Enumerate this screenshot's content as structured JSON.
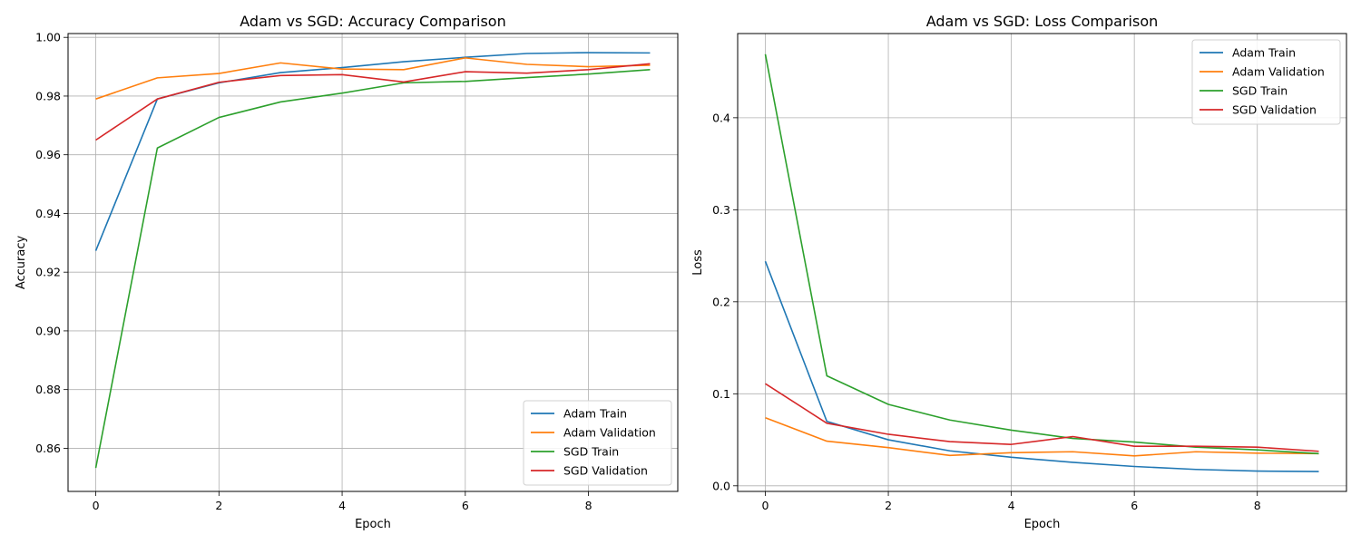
{
  "chart_data": [
    {
      "type": "line",
      "title": "Adam vs SGD: Accuracy Comparison",
      "xlabel": "Epoch",
      "ylabel": "Accuracy",
      "xlim": [
        -0.45,
        9.45
      ],
      "ylim": [
        0.8453,
        1.0013
      ],
      "xticks": [
        0,
        2,
        4,
        6,
        8
      ],
      "xtick_labels": [
        "0",
        "2",
        "4",
        "6",
        "8"
      ],
      "yticks": [
        0.86,
        0.88,
        0.9,
        0.92,
        0.94,
        0.96,
        0.98,
        1.0
      ],
      "ytick_labels": [
        "0.86",
        "0.88",
        "0.90",
        "0.92",
        "0.94",
        "0.96",
        "0.98",
        "1.00"
      ],
      "grid": true,
      "legend_position": "lower-right",
      "x": [
        0,
        1,
        2,
        3,
        4,
        5,
        6,
        7,
        8,
        9
      ],
      "series": [
        {
          "name": "Adam Train",
          "color": "#1f77b4",
          "values": [
            0.9273,
            0.979,
            0.9845,
            0.988,
            0.9897,
            0.9917,
            0.9932,
            0.9945,
            0.9948,
            0.9947
          ]
        },
        {
          "name": "Adam Validation",
          "color": "#ff7f0e",
          "values": [
            0.979,
            0.9862,
            0.9877,
            0.9913,
            0.9892,
            0.989,
            0.993,
            0.9908,
            0.99,
            0.9905
          ]
        },
        {
          "name": "SGD Train",
          "color": "#2ca02c",
          "values": [
            0.8533,
            0.9623,
            0.9727,
            0.978,
            0.981,
            0.9845,
            0.985,
            0.9863,
            0.9875,
            0.989
          ]
        },
        {
          "name": "SGD Validation",
          "color": "#d62728",
          "values": [
            0.965,
            0.979,
            0.9847,
            0.987,
            0.9873,
            0.9848,
            0.9883,
            0.9878,
            0.989,
            0.991
          ]
        }
      ]
    },
    {
      "type": "line",
      "title": "Adam vs SGD: Loss Comparison",
      "xlabel": "Epoch",
      "ylabel": "Loss",
      "xlim": [
        -0.45,
        9.45
      ],
      "ylim": [
        -0.0061,
        0.4915
      ],
      "xticks": [
        0,
        2,
        4,
        6,
        8
      ],
      "xtick_labels": [
        "0",
        "2",
        "4",
        "6",
        "8"
      ],
      "yticks": [
        0.0,
        0.1,
        0.2,
        0.3,
        0.4
      ],
      "ytick_labels": [
        "0.0",
        "0.1",
        "0.2",
        "0.3",
        "0.4"
      ],
      "grid": true,
      "legend_position": "upper-right",
      "x": [
        0,
        1,
        2,
        3,
        4,
        5,
        6,
        7,
        8,
        9
      ],
      "series": [
        {
          "name": "Adam Train",
          "color": "#1f77b4",
          "values": [
            0.244,
            0.07,
            0.05,
            0.038,
            0.031,
            0.0255,
            0.021,
            0.0178,
            0.016,
            0.0155
          ]
        },
        {
          "name": "Adam Validation",
          "color": "#ff7f0e",
          "values": [
            0.074,
            0.0485,
            0.0415,
            0.033,
            0.036,
            0.037,
            0.0325,
            0.037,
            0.0355,
            0.035
          ]
        },
        {
          "name": "SGD Train",
          "color": "#2ca02c",
          "values": [
            0.469,
            0.1195,
            0.0885,
            0.0715,
            0.0605,
            0.0515,
            0.0475,
            0.042,
            0.039,
            0.035
          ]
        },
        {
          "name": "SGD Validation",
          "color": "#d62728",
          "values": [
            0.111,
            0.068,
            0.056,
            0.048,
            0.045,
            0.0535,
            0.043,
            0.043,
            0.042,
            0.0375
          ]
        }
      ]
    }
  ]
}
